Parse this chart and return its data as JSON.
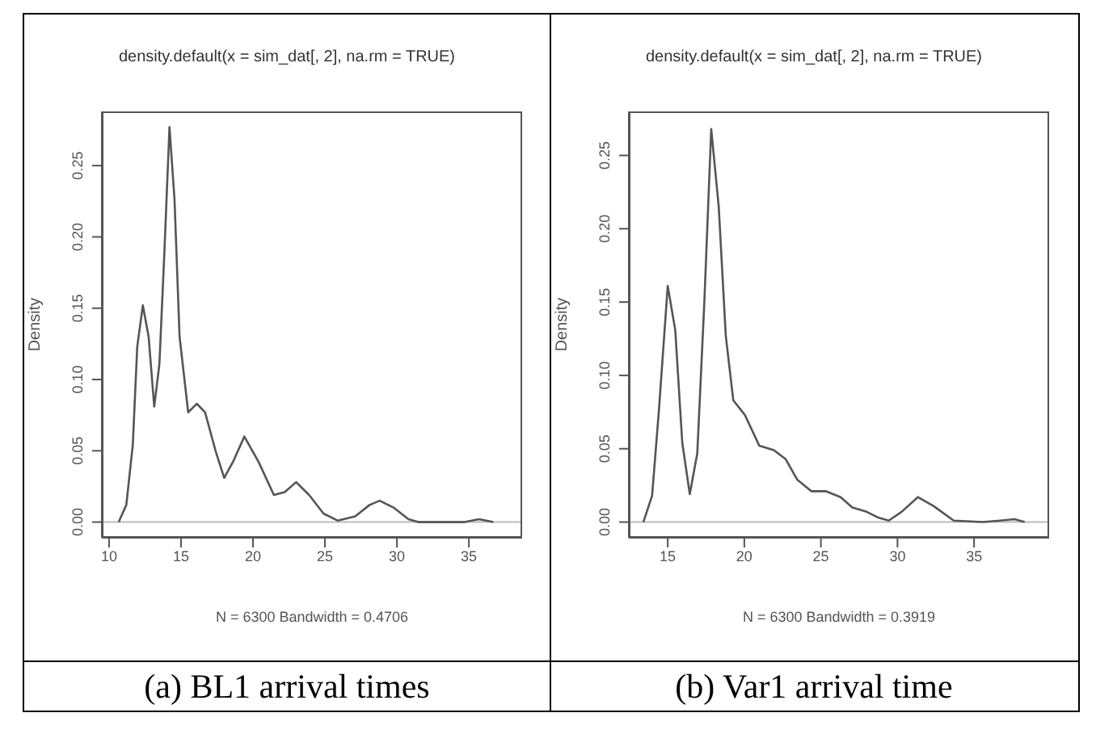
{
  "chart_data": [
    {
      "type": "line",
      "title": "density.default(x = sim_dat[, 2], na.rm = TRUE)",
      "xlabel": "N = 6300   Bandwidth = 0.4706",
      "ylabel": "Density",
      "annotations": [
        "(a) BL1 arrival times"
      ],
      "marker": "none",
      "line_style": "solid",
      "xlim": [
        9.5,
        38.7
      ],
      "xticks": [
        10,
        15,
        20,
        25,
        30,
        35
      ],
      "ylim": [
        -0.011,
        0.288
      ],
      "yticks": [
        {
          "value": 0,
          "label": "0.00"
        },
        {
          "value": 0.05,
          "label": "0.05"
        },
        {
          "value": 0.1,
          "label": "0.10"
        },
        {
          "value": 0.15,
          "label": "0.15"
        },
        {
          "value": 0.2,
          "label": "0.20"
        },
        {
          "value": 0.25,
          "label": "0.25"
        }
      ],
      "ref_lines": [
        {
          "axis": "y",
          "value": 0,
          "label": null,
          "color": "#bbbbbb"
        }
      ],
      "series": [
        {
          "color": "#555555",
          "x": [
            10.67,
            11.2,
            11.65,
            11.96,
            12.35,
            12.75,
            13.14,
            13.5,
            13.84,
            14.2,
            14.55,
            14.9,
            15.5,
            16.1,
            16.67,
            17.4,
            18.0,
            18.6,
            19.4,
            20.4,
            21.45,
            22.2,
            23.0,
            23.9,
            24.9,
            25.9,
            27.1,
            28.1,
            28.8,
            29.8,
            30.8,
            31.5,
            33.0,
            34.7,
            35.7,
            36.7
          ],
          "values": [
            0,
            0.012,
            0.054,
            0.123,
            0.152,
            0.13,
            0.081,
            0.111,
            0.188,
            0.277,
            0.226,
            0.13,
            0.077,
            0.083,
            0.077,
            0.05,
            0.031,
            0.042,
            0.06,
            0.042,
            0.019,
            0.021,
            0.028,
            0.019,
            0.006,
            0.001,
            0.004,
            0.012,
            0.015,
            0.01,
            0.002,
            0,
            0,
            0,
            0.002,
            0
          ]
        }
      ]
    },
    {
      "type": "line",
      "title": "density.default(x = sim_dat[, 2], na.rm = TRUE)",
      "xlabel": "N = 6300   Bandwidth = 0.3919",
      "ylabel": "Density",
      "annotations": [
        "(b) Var1 arrival time"
      ],
      "marker": "none",
      "line_style": "solid",
      "xlim": [
        12.46,
        39.9
      ],
      "xticks": [
        15,
        20,
        25,
        30,
        35
      ],
      "ylim": [
        -0.0107,
        0.28
      ],
      "yticks": [
        {
          "value": 0,
          "label": "0.00"
        },
        {
          "value": 0.05,
          "label": "0.05"
        },
        {
          "value": 0.1,
          "label": "0.10"
        },
        {
          "value": 0.15,
          "label": "0.15"
        },
        {
          "value": 0.2,
          "label": "0.20"
        },
        {
          "value": 0.25,
          "label": "0.25"
        }
      ],
      "ref_lines": [
        {
          "axis": "y",
          "value": 0,
          "label": null,
          "color": "#bbbbbb"
        }
      ],
      "series": [
        {
          "color": "#555555",
          "x": [
            13.41,
            13.98,
            14.43,
            15.0,
            15.49,
            15.95,
            16.44,
            16.93,
            17.39,
            17.84,
            18.33,
            18.79,
            19.28,
            20.04,
            20.98,
            21.93,
            22.69,
            23.45,
            24.39,
            25.34,
            26.29,
            27.05,
            27.99,
            28.75,
            29.43,
            30.27,
            31.33,
            32.35,
            33.67,
            35.57,
            36.7,
            37.65,
            38.3
          ],
          "values": [
            0,
            0.018,
            0.077,
            0.161,
            0.131,
            0.054,
            0.019,
            0.047,
            0.15,
            0.268,
            0.215,
            0.127,
            0.083,
            0.073,
            0.052,
            0.049,
            0.043,
            0.029,
            0.021,
            0.021,
            0.017,
            0.01,
            0.007,
            0.003,
            0.001,
            0.007,
            0.017,
            0.011,
            0.001,
            0,
            0.001,
            0.002,
            0
          ]
        }
      ]
    }
  ]
}
